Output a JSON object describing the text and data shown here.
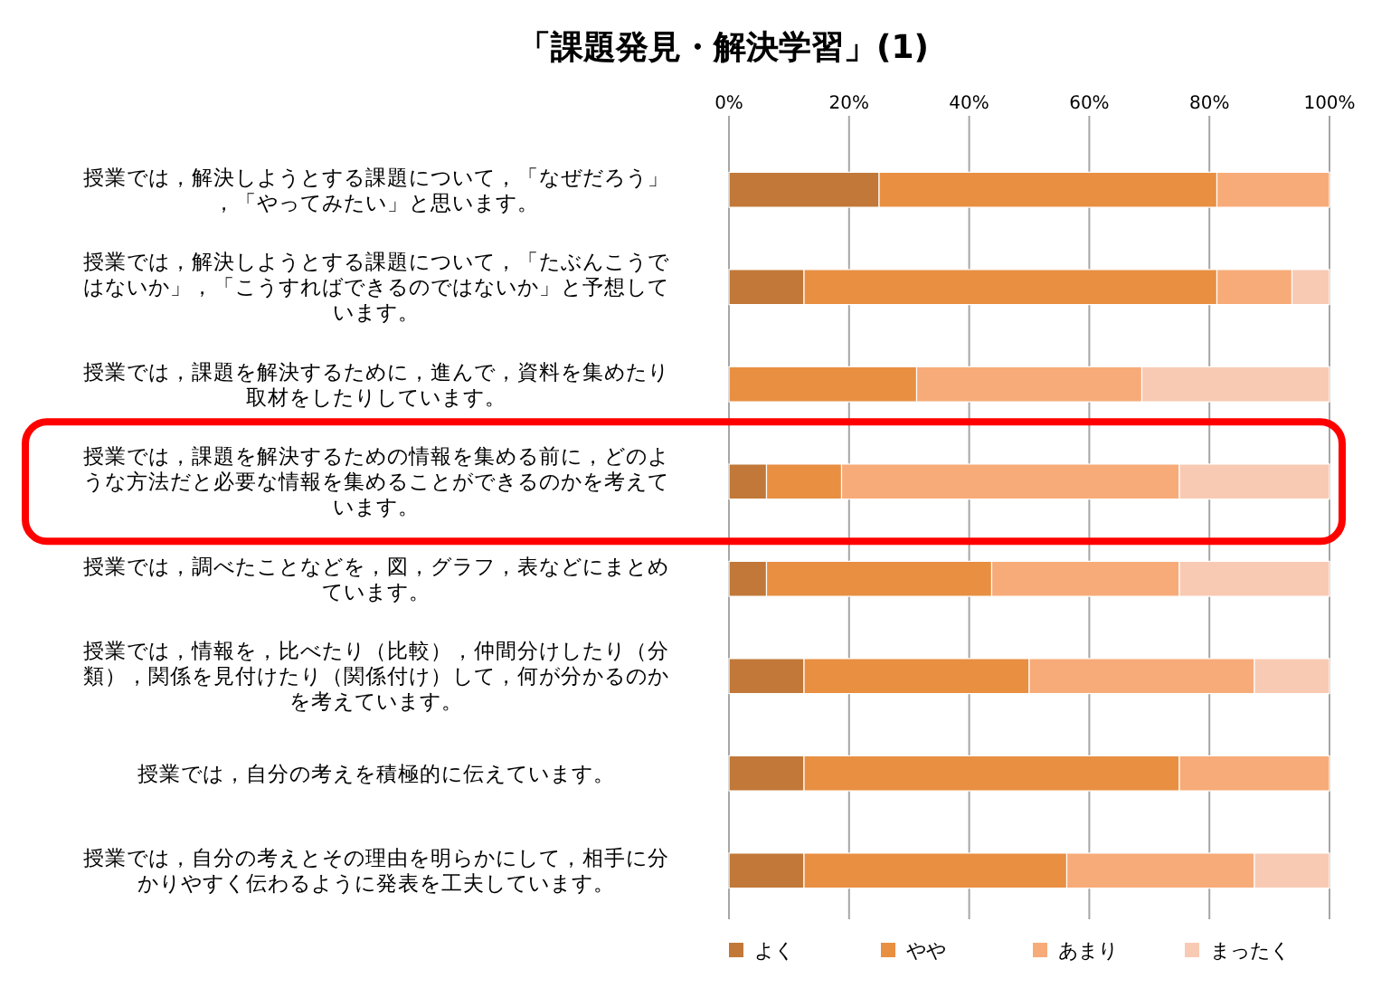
{
  "chart_data": {
    "type": "bar",
    "title": "「課題発見・解決学習」(1)",
    "orientation": "horizontal",
    "stacked": true,
    "grid": "x",
    "legend": "bottom",
    "categories": [
      "授業では，解決しようとする課題について，「なぜだろう」，「やってみたい」と思います。",
      "授業では，解決しようとする課題について，「たぶんこうではないか」，「こうすればできるのではないか」と予想しています。",
      "授業では，課題を解決するために，進んで，資料を集めたり取材をしたりしています。",
      "授業では，課題を解決するための情報を集める前に，どのような方法だと必要な情報を集めることができるのかを考えています。",
      "授業では，調べたことなどを，図，グラフ，表などにまとめています。",
      "授業では，情報を，比べたり（比較），仲間分けしたり（分類），関係を見付けたり（関係付け）して，何が分かるのかを考えています。",
      "授業では，自分の考えを積極的に伝えています。",
      "授業では，自分の考えとその理由を明らかにして，相手に分かりやすく伝わるように発表を工夫しています。"
    ],
    "series": [
      {
        "name": "よく",
        "color": "#c17838",
        "values": [
          25,
          12.5,
          0,
          6.25,
          6.25,
          12.5,
          12.5,
          12.5
        ]
      },
      {
        "name": "やや",
        "color": "#e88f42",
        "values": [
          56.25,
          68.75,
          31.25,
          12.5,
          37.5,
          37.5,
          62.5,
          43.75
        ]
      },
      {
        "name": "あまり",
        "color": "#f7ab78",
        "values": [
          18.75,
          12.5,
          37.5,
          56.25,
          31.25,
          37.5,
          25,
          31.25
        ]
      },
      {
        "name": "まったく",
        "color": "#f8cab3",
        "values": [
          0,
          6.25,
          31.25,
          25,
          25,
          12.5,
          0,
          12.5
        ]
      }
    ],
    "xlim": [
      0,
      100
    ],
    "xticks": [
      {
        "value": 0,
        "label": "0%"
      },
      {
        "value": 20,
        "label": "20%"
      },
      {
        "value": 40,
        "label": "40%"
      },
      {
        "value": 60,
        "label": "60%"
      },
      {
        "value": 80,
        "label": "80%"
      },
      {
        "value": 100,
        "label": "100%"
      }
    ]
  }
}
